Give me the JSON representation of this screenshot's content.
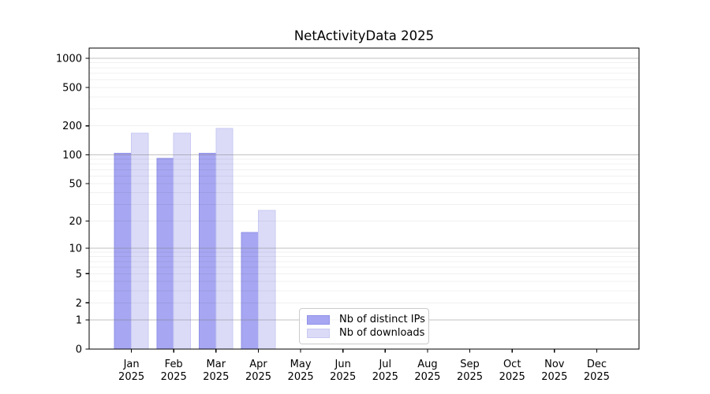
{
  "chart_data": {
    "type": "bar",
    "title": "NetActivityData 2025",
    "categories": [
      "Jan",
      "Feb",
      "Mar",
      "Apr",
      "May",
      "Jun",
      "Jul",
      "Aug",
      "Sep",
      "Oct",
      "Nov",
      "Dec"
    ],
    "category_year": "2025",
    "series": [
      {
        "key": "ips",
        "name": "Nb of distinct IPs",
        "color": "#a6a6f2",
        "edge_color": "#9191e8",
        "values": [
          104,
          92,
          104,
          15,
          0,
          0,
          0,
          0,
          0,
          0,
          0,
          0
        ]
      },
      {
        "key": "downloads",
        "name": "Nb of downloads",
        "color": "#dbdbf8",
        "edge_color": "#c9c9f2",
        "values": [
          168,
          168,
          188,
          26,
          0,
          0,
          0,
          0,
          0,
          0,
          0,
          0
        ]
      }
    ],
    "yscale": "symlog",
    "y_tick_values": [
      0,
      1,
      2,
      5,
      10,
      20,
      50,
      100,
      200,
      500,
      1000
    ],
    "y_major_gridline_values": [
      1,
      10,
      100,
      1000
    ],
    "ylim": [
      0,
      1274
    ],
    "grid": true,
    "legend_position": "lower center",
    "colors": {
      "axis": "#000000",
      "major_grid": "rgba(120,120,120,0.45)",
      "minor_grid": "rgba(0,0,0,0.06)",
      "text": "#000000"
    }
  }
}
